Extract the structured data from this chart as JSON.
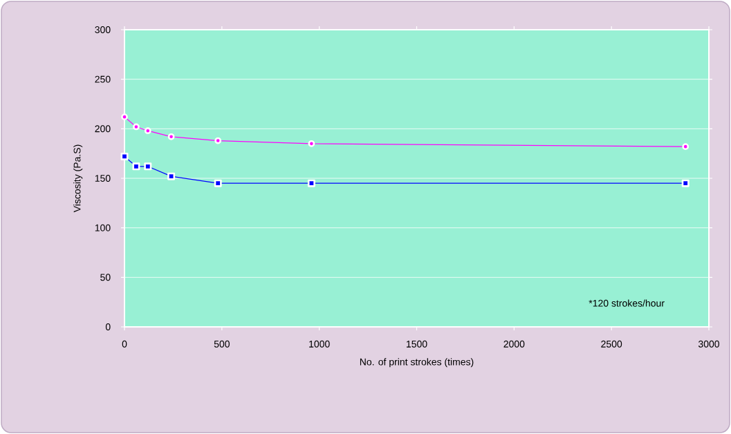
{
  "chart_data": {
    "type": "line",
    "xlabel": "No. of print strokes (times)",
    "ylabel": "Viscosity (Pa.S)",
    "x": [
      0,
      60,
      120,
      240,
      480,
      960,
      2880
    ],
    "series": [
      {
        "color": "#ff00ff",
        "marker": "circle",
        "values": [
          212,
          202,
          198,
          192,
          188,
          185,
          182
        ]
      },
      {
        "color": "#0000ff",
        "marker": "square",
        "values": [
          172,
          162,
          162,
          152,
          145,
          145,
          145
        ]
      }
    ],
    "xlim": [
      0,
      3000
    ],
    "xticks": [
      0,
      500,
      1000,
      1500,
      2000,
      2500,
      3000
    ],
    "ylim": [
      0,
      300
    ],
    "yticks": [
      0,
      50,
      100,
      150,
      200,
      250,
      300
    ],
    "grid": "y",
    "annotations": [
      "*120 strokes/hour"
    ]
  }
}
